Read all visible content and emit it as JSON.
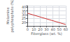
{
  "chart_data": {
    "type": "line",
    "x": [
      0,
      60
    ],
    "values": [
      32,
      17
    ],
    "color": "#cc3333",
    "xlabel": "Fiberglass (wt. %)",
    "ylabel": "Melamine\npolyphosphate (%)",
    "xlim": [
      0,
      60
    ],
    "ylim": [
      15,
      42
    ],
    "xticks": [
      0,
      10,
      20,
      30,
      40,
      50,
      60
    ],
    "yticks": [
      20,
      25,
      30,
      35,
      40
    ],
    "grid": true
  }
}
